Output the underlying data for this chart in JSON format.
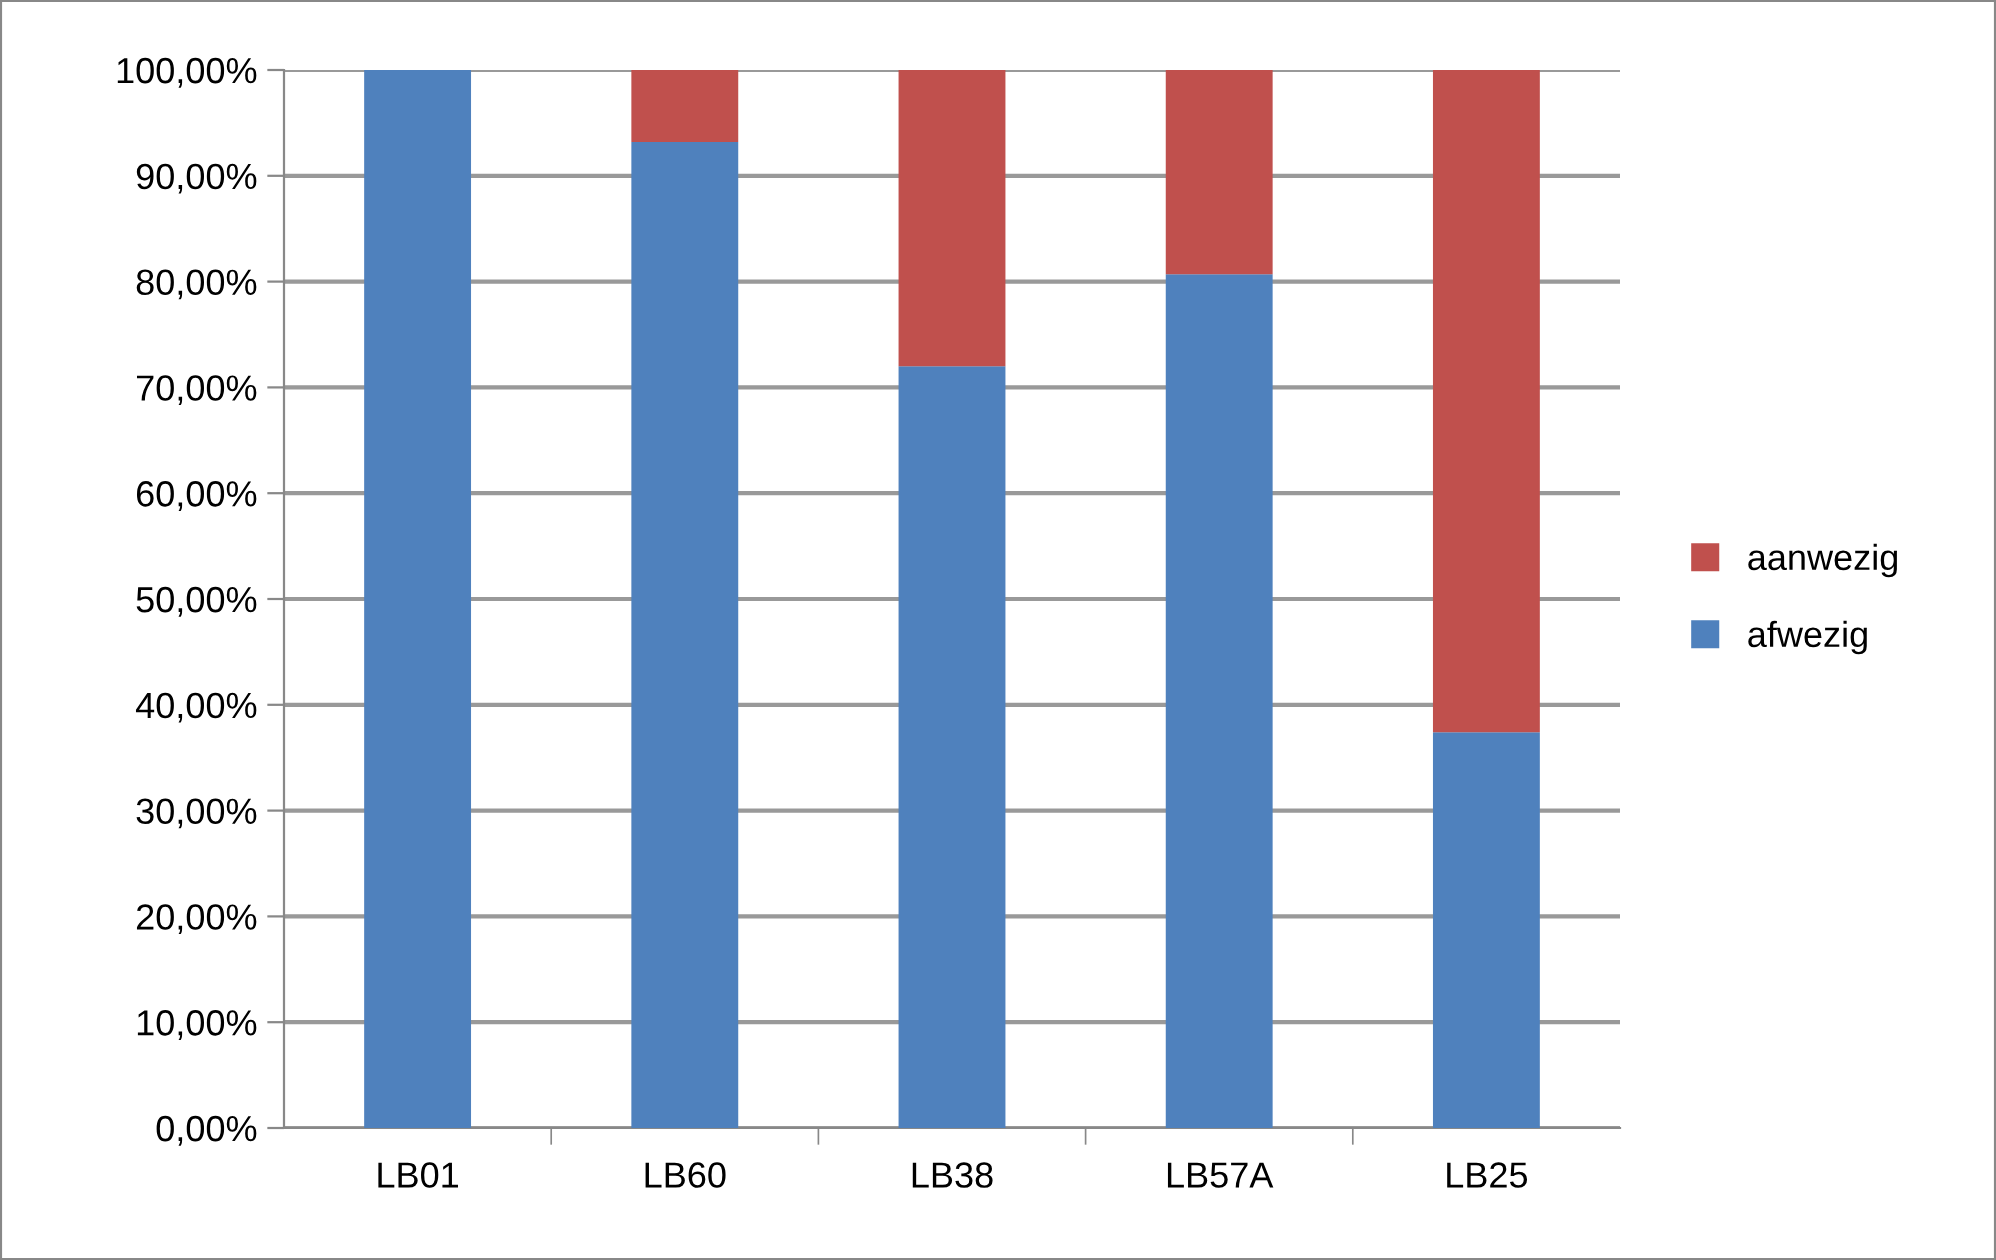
{
  "chart_data": {
    "type": "bar",
    "stacked": true,
    "categories": [
      "LB01",
      "LB60",
      "LB38",
      "LB57A",
      "LB25"
    ],
    "series": [
      {
        "name": "afwezig",
        "color": "#4f81bd",
        "values": [
          100,
          93.2,
          72.0,
          80.7,
          37.4
        ]
      },
      {
        "name": "aanwezig",
        "color": "#c0504d",
        "values": [
          0,
          6.8,
          28.0,
          19.3,
          62.6
        ]
      }
    ],
    "ylim": [
      0,
      100
    ],
    "yticks": [
      {
        "value": 0,
        "label": "0,00%"
      },
      {
        "value": 10,
        "label": "10,00%"
      },
      {
        "value": 20,
        "label": "20,00%"
      },
      {
        "value": 30,
        "label": "30,00%"
      },
      {
        "value": 40,
        "label": "40,00%"
      },
      {
        "value": 50,
        "label": "50,00%"
      },
      {
        "value": 60,
        "label": "60,00%"
      },
      {
        "value": 70,
        "label": "70,00%"
      },
      {
        "value": 80,
        "label": "80,00%"
      },
      {
        "value": 90,
        "label": "90,00%"
      },
      {
        "value": 100,
        "label": "100,00%"
      }
    ],
    "grid": "y",
    "legend": "right"
  }
}
